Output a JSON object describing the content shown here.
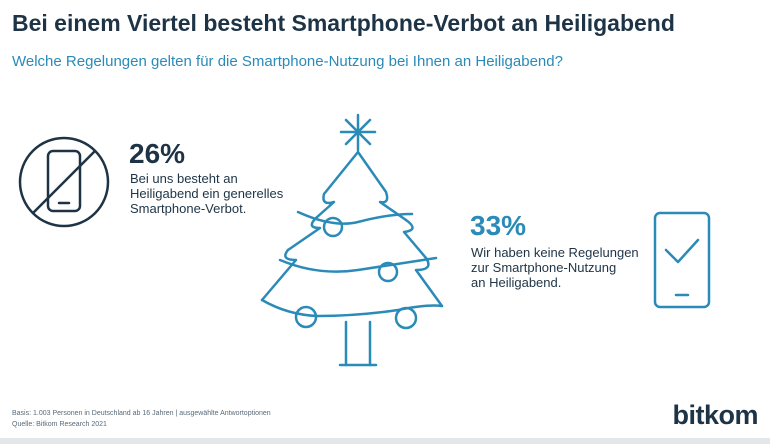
{
  "header": {
    "title": "Bei einem Viertel besteht Smartphone-Verbot an Heiligabend",
    "subtitle": "Welche Regelungen gelten für die Smartphone-Nutzung bei Ihnen an Heiligabend?"
  },
  "chart_data": {
    "type": "table",
    "categories": [
      "Bei uns besteht an Heiligabend ein generelles Smartphone-Verbot.",
      "Wir haben keine Regelungen zur Smartphone-Nutzung an Heiligabend."
    ],
    "values": [
      26,
      33
    ],
    "value_labels": [
      "26%",
      "33%"
    ],
    "title": "Bei einem Viertel besteht Smartphone-Verbot an Heiligabend",
    "subtitle": "Welche Regelungen gelten für die Smartphone-Nutzung bei Ihnen an Heiligabend?"
  },
  "stats": [
    {
      "value": "26%",
      "lines": [
        "Bei uns besteht an",
        "Heiligabend ein generelles",
        "Smartphone-Verbot."
      ],
      "icon": "no-smartphone-icon",
      "color": "#1e3446"
    },
    {
      "value": "33%",
      "lines": [
        "Wir haben keine Regelungen",
        "zur Smartphone-Nutzung",
        "an Heiligabend."
      ],
      "icon": "smartphone-check-icon",
      "color": "#2a8ab8"
    }
  ],
  "illustration": {
    "icon": "christmas-tree-icon",
    "color": "#2a8ab8"
  },
  "footer": {
    "basis": "Basis: 1.003 Personen in Deutschland ab 16 Jahren | ausgewählte Antwortoptionen",
    "source": "Quelle: Bitkom Research 2021",
    "logo": "bitkom"
  },
  "colors": {
    "dark": "#1e3446",
    "accent": "#2a8ab8"
  }
}
